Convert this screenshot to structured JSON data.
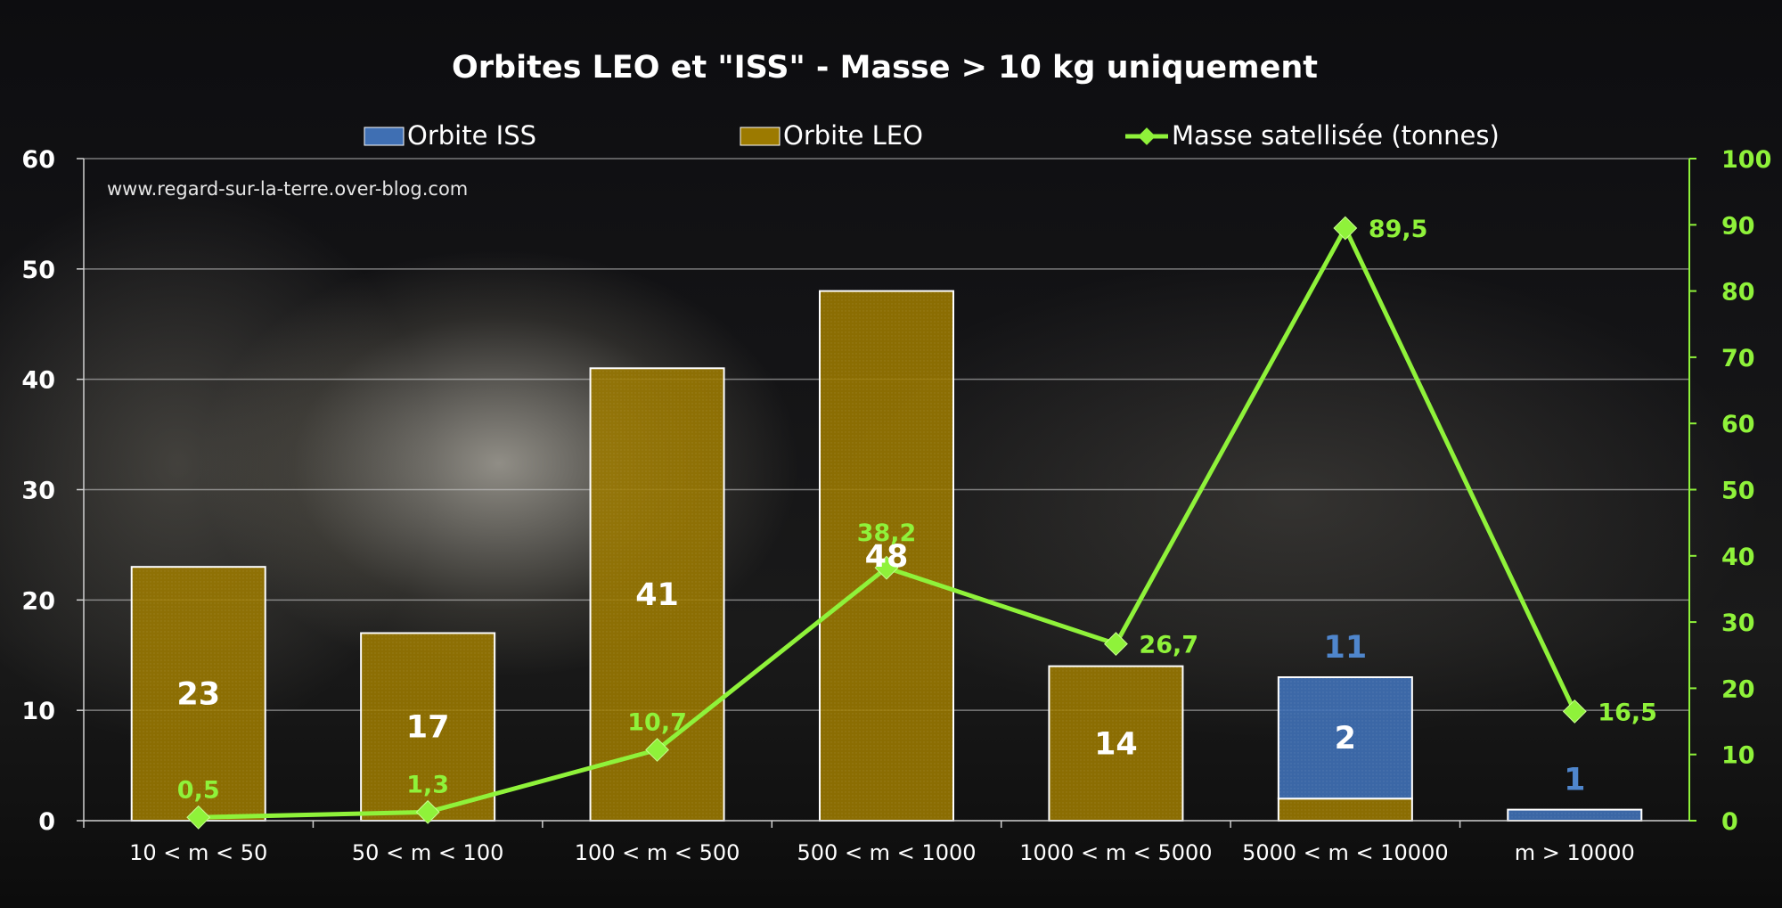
{
  "chart_data": {
    "type": "bar",
    "title": "Orbites LEO et \"ISS\" - Masse > 10 kg uniquement",
    "watermark": "www.regard-sur-la-terre.over-blog.com",
    "categories": [
      "10 < m < 50",
      "50 < m < 100",
      "100 < m < 500",
      "500 < m < 1000",
      "1000 < m < 5000",
      "5000 < m < 10000",
      "m > 10000"
    ],
    "stacked": true,
    "series": [
      {
        "name": "Orbite LEO",
        "values": [
          23,
          17,
          41,
          48,
          14,
          2,
          0
        ],
        "labels": [
          "23",
          "17",
          "41",
          "48",
          "14",
          "2",
          ""
        ],
        "color": "#9c7a00",
        "axis": "left"
      },
      {
        "name": "Orbite ISS",
        "values": [
          0,
          0,
          0,
          0,
          0,
          11,
          1
        ],
        "labels": [
          "",
          "",
          "",
          "",
          "",
          "11",
          "1"
        ],
        "color": "#3f6fb3",
        "axis": "left"
      }
    ],
    "line_series": {
      "name": "Masse satellisée (tonnes)",
      "values": [
        0.5,
        1.3,
        10.7,
        38.2,
        26.7,
        89.5,
        16.5
      ],
      "labels": [
        "0,5",
        "1,3",
        "10,7",
        "38,2",
        "26,7",
        "89,5",
        "16,5"
      ],
      "color": "#8ff23a",
      "axis": "right"
    },
    "y_left": {
      "min": 0,
      "max": 60,
      "ticks": [
        "0",
        "10",
        "20",
        "30",
        "40",
        "50",
        "60"
      ]
    },
    "y_right": {
      "min": 0,
      "max": 100,
      "ticks": [
        "0",
        "10",
        "20",
        "30",
        "40",
        "50",
        "60",
        "70",
        "80",
        "90",
        "100"
      ]
    },
    "legend_position": "top",
    "grid": true
  }
}
